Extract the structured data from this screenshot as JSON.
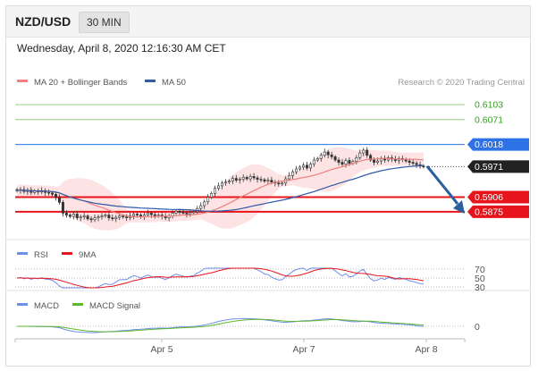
{
  "header": {
    "pair": "NZD/USD",
    "timeframe": "30 MIN"
  },
  "date_text": "Wednesday, April 8, 2020 12:16:30 AM CET",
  "colors": {
    "resistance": "#9acd7f",
    "support": "#e8141b",
    "ma20": "#f08080",
    "ma50": "#2f5aa8",
    "blue_level": "#2d72e6",
    "price_bg": "#222222",
    "rsi": "#6f8ee8",
    "rsi_ma": "#e8141b",
    "macd": "#6f8ee8",
    "macd_signal": "#5cb82e",
    "arrow": "#2c5f9e"
  },
  "chart_data": [
    {
      "type": "candlestick",
      "legend": [
        {
          "name": "MA 20 + Bollinger Bands",
          "color": "#f08080"
        },
        {
          "name": "MA 50",
          "color": "#2f5aa8"
        }
      ],
      "credit": "Research © 2020 Trading Central",
      "ylim": [
        0.585,
        0.612
      ],
      "x_ticks": [
        "Apr 5",
        "Apr 7",
        "Apr 8"
      ],
      "levels": [
        {
          "value": 0.6103,
          "label": "0.6103",
          "kind": "resistance"
        },
        {
          "value": 0.6071,
          "label": "0.6071",
          "kind": "resistance"
        },
        {
          "value": 0.6018,
          "label": "0.6018",
          "kind": "pivot"
        },
        {
          "value": 0.5971,
          "label": "0.5971",
          "kind": "last"
        },
        {
          "value": 0.5906,
          "label": "0.5906",
          "kind": "support"
        },
        {
          "value": 0.5875,
          "label": "0.5875",
          "kind": "support"
        }
      ],
      "candles_close": [
        0.592,
        0.5922,
        0.5918,
        0.5921,
        0.5916,
        0.5919,
        0.5917,
        0.592,
        0.5916,
        0.5915,
        0.5912,
        0.5905,
        0.5895,
        0.5872,
        0.5868,
        0.5865,
        0.587,
        0.5862,
        0.5864,
        0.5866,
        0.586,
        0.5858,
        0.5862,
        0.5864,
        0.5866,
        0.5868,
        0.5862,
        0.586,
        0.5863,
        0.5866,
        0.5864,
        0.5862,
        0.5866,
        0.587,
        0.5868,
        0.5864,
        0.5868,
        0.5872,
        0.5869,
        0.5866,
        0.5868,
        0.5865,
        0.5862,
        0.5866,
        0.5872,
        0.5876,
        0.5874,
        0.5872,
        0.587,
        0.5873,
        0.5875,
        0.5882,
        0.5888,
        0.5896,
        0.5906,
        0.5914,
        0.5925,
        0.593,
        0.5936,
        0.5938,
        0.594,
        0.5946,
        0.5942,
        0.5944,
        0.5948,
        0.5945,
        0.595,
        0.5947,
        0.5944,
        0.5943,
        0.594,
        0.5942,
        0.5938,
        0.5936,
        0.5934,
        0.5936,
        0.5945,
        0.5952,
        0.596,
        0.5966,
        0.597,
        0.5974,
        0.5968,
        0.5976,
        0.5985,
        0.5988,
        0.5995,
        0.6002,
        0.5996,
        0.5992,
        0.5985,
        0.598,
        0.5976,
        0.5984,
        0.5978,
        0.5982,
        0.599,
        0.6,
        0.6006,
        0.5995,
        0.5985,
        0.598,
        0.5983,
        0.5988,
        0.5985,
        0.599,
        0.5987,
        0.5984,
        0.5988,
        0.5986,
        0.5983,
        0.598,
        0.5978,
        0.5975,
        0.5972,
        0.5971
      ]
    },
    {
      "type": "line",
      "name": "RSI panel",
      "legend": [
        {
          "name": "RSI",
          "color": "#6f8ee8"
        },
        {
          "name": "9MA",
          "color": "#e8141b"
        }
      ],
      "levels": [
        {
          "value": 70,
          "label": "70"
        },
        {
          "value": 50,
          "label": "50"
        },
        {
          "value": 30,
          "label": "30"
        }
      ],
      "ylim": [
        20,
        80
      ]
    },
    {
      "type": "line",
      "name": "MACD panel",
      "legend": [
        {
          "name": "MACD",
          "color": "#6f8ee8"
        },
        {
          "name": "MACD Signal",
          "color": "#5cb82e"
        }
      ],
      "levels": [
        {
          "value": 0,
          "label": "0"
        }
      ]
    }
  ]
}
